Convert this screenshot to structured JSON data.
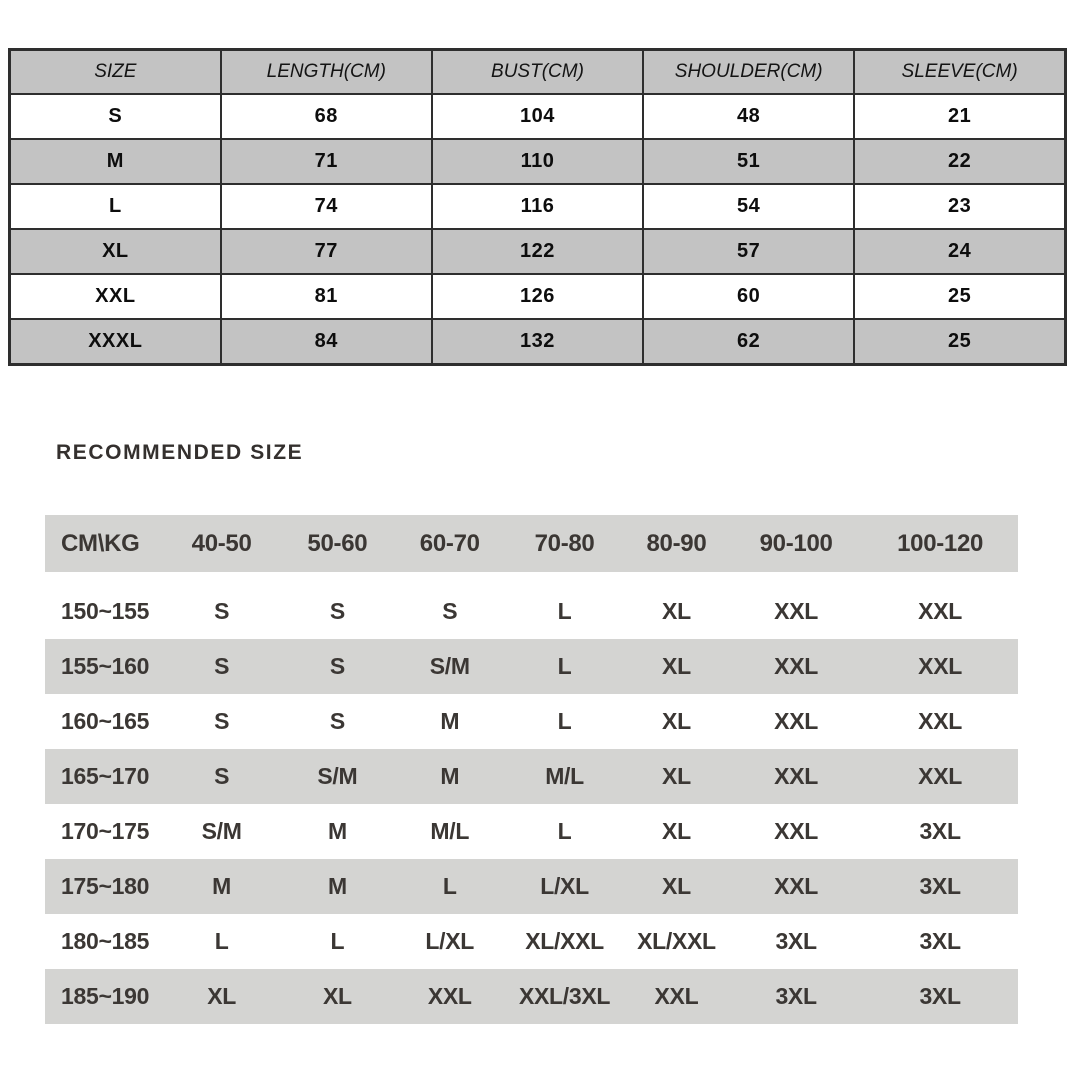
{
  "size_table": {
    "columns": [
      "SIZE",
      "LENGTH(CM)",
      "BUST(CM)",
      "SHOULDER(CM)",
      "SLEEVE(CM)"
    ],
    "rows": [
      [
        "S",
        "68",
        "104",
        "48",
        "21"
      ],
      [
        "M",
        "71",
        "110",
        "51",
        "22"
      ],
      [
        "L",
        "74",
        "116",
        "54",
        "23"
      ],
      [
        "XL",
        "77",
        "122",
        "57",
        "24"
      ],
      [
        "XXL",
        "81",
        "126",
        "60",
        "25"
      ],
      [
        "XXXL",
        "84",
        "132",
        "62",
        "25"
      ]
    ],
    "header_bg": "#c3c3c3",
    "stripe_bg": "#c3c3c3",
    "border_color": "#2e2e2e"
  },
  "recommended": {
    "title": "RECOMMENDED SIZE",
    "columns": [
      "CM\\KG",
      "40-50",
      "50-60",
      "60-70",
      "70-80",
      "80-90",
      "90-100",
      "100-120"
    ],
    "rows": [
      [
        "150~155",
        "S",
        "S",
        "S",
        "L",
        "XL",
        "XXL",
        "XXL"
      ],
      [
        "155~160",
        "S",
        "S",
        "S/M",
        "L",
        "XL",
        "XXL",
        "XXL"
      ],
      [
        "160~165",
        "S",
        "S",
        "M",
        "L",
        "XL",
        "XXL",
        "XXL"
      ],
      [
        "165~170",
        "S",
        "S/M",
        "M",
        "M/L",
        "XL",
        "XXL",
        "XXL"
      ],
      [
        "170~175",
        "S/M",
        "M",
        "M/L",
        "L",
        "XL",
        "XXL",
        "3XL"
      ],
      [
        "175~180",
        "M",
        "M",
        "L",
        "L/XL",
        "XL",
        "XXL",
        "3XL"
      ],
      [
        "180~185",
        "L",
        "L",
        "L/XL",
        "XL/XXL",
        "XL/XXL",
        "3XL",
        "3XL"
      ],
      [
        "185~190",
        "XL",
        "XL",
        "XXL",
        "XXL/3XL",
        "XXL",
        "3XL",
        "3XL"
      ]
    ],
    "stripe_bg": "#d4d4d2",
    "text_color": "#3b3734"
  }
}
